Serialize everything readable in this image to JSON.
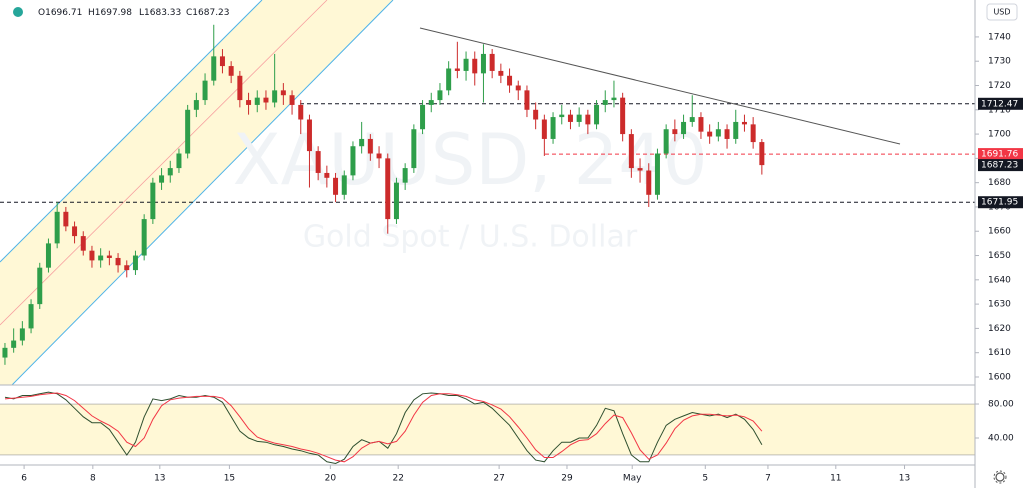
{
  "header": {
    "ohlc_keys": [
      "O",
      "H",
      "L",
      "C"
    ],
    "currency": "USD",
    "watermark_symbol": "XAUUSD, 240",
    "watermark_desc": "Gold Spot / U.S. Dollar"
  },
  "chart_data": [
    {
      "type": "candlestick",
      "up_color": "#2e9e4a",
      "down_color": "#cc2b2b",
      "open": [
        1608,
        1612,
        1615,
        1620,
        1630,
        1645,
        1655,
        1668,
        1662,
        1658,
        1652,
        1648,
        1650,
        1649,
        1646,
        1644,
        1650,
        1665,
        1680,
        1683,
        1686,
        1692,
        1710,
        1714,
        1722,
        1732,
        1728,
        1724,
        1714,
        1712,
        1715,
        1713,
        1718,
        1716,
        1712,
        1706,
        1693,
        1684,
        1682,
        1675,
        1683,
        1695,
        1698,
        1692,
        1690,
        1665,
        1680,
        1686,
        1702,
        1712,
        1714,
        1718,
        1727,
        1726,
        1731,
        1725,
        1733,
        1726,
        1724,
        1720,
        1718,
        1710,
        1706,
        1698,
        1707,
        1708,
        1705,
        1708,
        1704,
        1712,
        1714,
        1715,
        1700,
        1686,
        1685,
        1675,
        1692,
        1702,
        1700,
        1705,
        1707,
        1701,
        1699,
        1702,
        1698,
        1705,
        1704,
        1696.71
      ],
      "high": [
        1614,
        1620,
        1623,
        1632,
        1647,
        1657,
        1672,
        1670,
        1664,
        1660,
        1654,
        1653,
        1652,
        1651,
        1648,
        1652,
        1667,
        1682,
        1686,
        1689,
        1694,
        1712,
        1717,
        1725,
        1745,
        1735,
        1730,
        1726,
        1717,
        1718,
        1718,
        1733,
        1721,
        1718,
        1714,
        1708,
        1695,
        1687,
        1684,
        1685,
        1697,
        1705,
        1700,
        1695,
        1692,
        1682,
        1688,
        1704,
        1714,
        1717,
        1721,
        1730,
        1738,
        1734,
        1734,
        1737,
        1735,
        1729,
        1727,
        1722,
        1720,
        1713,
        1708,
        1709,
        1712,
        1710,
        1711,
        1710,
        1714,
        1718,
        1722,
        1717,
        1702,
        1690,
        1688,
        1694,
        1704,
        1706,
        1708,
        1716,
        1709,
        1704,
        1705,
        1704,
        1710,
        1708,
        1707,
        1697.98
      ],
      "low": [
        1605,
        1610,
        1613,
        1618,
        1628,
        1643,
        1653,
        1660,
        1655,
        1650,
        1645,
        1645,
        1646,
        1643,
        1641,
        1642,
        1648,
        1663,
        1677,
        1680,
        1684,
        1690,
        1707,
        1712,
        1720,
        1725,
        1721,
        1711,
        1708,
        1709,
        1710,
        1711,
        1712,
        1708,
        1700,
        1678,
        1681,
        1678,
        1672,
        1673,
        1681,
        1692,
        1689,
        1686,
        1659,
        1663,
        1677,
        1684,
        1700,
        1709,
        1712,
        1716,
        1723,
        1722,
        1720,
        1713,
        1723,
        1721,
        1717,
        1714,
        1707,
        1702,
        1691,
        1696,
        1704,
        1702,
        1703,
        1700,
        1702,
        1709,
        1711,
        1697,
        1682,
        1680,
        1670,
        1673,
        1690,
        1697,
        1698,
        1703,
        1698,
        1696,
        1697,
        1694,
        1696,
        1701,
        1694,
        1683.33
      ],
      "close": [
        1612,
        1615,
        1620,
        1630,
        1645,
        1655,
        1668,
        1662,
        1658,
        1652,
        1648,
        1650,
        1649,
        1646,
        1644,
        1650,
        1665,
        1680,
        1683,
        1686,
        1692,
        1710,
        1714,
        1722,
        1732,
        1728,
        1724,
        1714,
        1712,
        1715,
        1713,
        1718,
        1716,
        1712,
        1706,
        1693,
        1684,
        1682,
        1675,
        1683,
        1695,
        1698,
        1692,
        1690,
        1665,
        1680,
        1686,
        1702,
        1712,
        1714,
        1718,
        1727,
        1726,
        1731,
        1725,
        1733,
        1726,
        1724,
        1720,
        1718,
        1710,
        1706,
        1698,
        1707,
        1708,
        1705,
        1708,
        1704,
        1712,
        1714,
        1715,
        1700,
        1686,
        1685,
        1675,
        1692,
        1702,
        1700,
        1705,
        1707,
        1701,
        1699,
        1702,
        1698,
        1705,
        1704,
        1696.71,
        1687.23
      ],
      "xlim": [
        -0.57,
        111.5
      ],
      "ylim": [
        1596.7,
        1755.2
      ],
      "yticks": [
        1600,
        1610,
        1620,
        1630,
        1640,
        1650,
        1660,
        1670,
        1680,
        1690,
        1700,
        1710,
        1720,
        1730,
        1740
      ],
      "xticks": [
        {
          "value": 2.2,
          "label": "6"
        },
        {
          "value": 10.1,
          "label": "8"
        },
        {
          "value": 17.8,
          "label": "13"
        },
        {
          "value": 25.8,
          "label": "15"
        },
        {
          "value": 37.4,
          "label": "20"
        },
        {
          "value": 45.2,
          "label": "22"
        },
        {
          "value": 56.8,
          "label": "27"
        },
        {
          "value": 64.6,
          "label": "29"
        },
        {
          "value": 72.1,
          "label": "May"
        },
        {
          "value": 80.5,
          "label": "5"
        },
        {
          "value": 87.7,
          "label": "7"
        },
        {
          "value": 95.5,
          "label": "11"
        },
        {
          "value": 103.4,
          "label": "13"
        }
      ],
      "levels": [
        {
          "value": 1712.47,
          "color": "#131722"
        },
        {
          "value": 1691.76,
          "color": "#f23645"
        },
        {
          "value": 1671.95,
          "color": "#131722"
        }
      ],
      "grid": false
    },
    {
      "type": "line",
      "ylim": [
        8.2,
        102.4
      ],
      "yticks": [
        {
          "value": 80,
          "label": "80.00"
        },
        {
          "value": 40,
          "label": "40.00"
        }
      ],
      "band": [
        20,
        80
      ],
      "series": [
        {
          "color": "#2f4f2f",
          "values": [
            88,
            86,
            90,
            90,
            92,
            94,
            92,
            85,
            75,
            65,
            58,
            58,
            50,
            35,
            20,
            35,
            65,
            86,
            84,
            86,
            90,
            88,
            88,
            90,
            88,
            82,
            65,
            48,
            40,
            36,
            35,
            32,
            30,
            27,
            25,
            22,
            20,
            12,
            10,
            15,
            30,
            38,
            34,
            36,
            28,
            45,
            70,
            85,
            92,
            93,
            92,
            90,
            90,
            86,
            80,
            82,
            75,
            65,
            55,
            40,
            25,
            14,
            12,
            25,
            35,
            35,
            40,
            40,
            55,
            75,
            72,
            45,
            20,
            12,
            12,
            35,
            55,
            62,
            66,
            70,
            68,
            66,
            68,
            64,
            68,
            62,
            50,
            32
          ]
        },
        {
          "color": "#f23645",
          "values": [
            86,
            87,
            88,
            89,
            91,
            92,
            93,
            90,
            84,
            75,
            66,
            60,
            55,
            48,
            35,
            30,
            40,
            62,
            78,
            85,
            87,
            88,
            89,
            89,
            89,
            87,
            78,
            65,
            51,
            41,
            37,
            34,
            32,
            30,
            27,
            25,
            22,
            18,
            14,
            12,
            18,
            28,
            34,
            36,
            33,
            36,
            48,
            67,
            82,
            90,
            92,
            92,
            91,
            89,
            85,
            83,
            79,
            74,
            65,
            53,
            40,
            26,
            17,
            17,
            24,
            32,
            37,
            38,
            45,
            57,
            67,
            64,
            46,
            26,
            15,
            20,
            34,
            51,
            61,
            66,
            68,
            68,
            67,
            66,
            67,
            65,
            60,
            48
          ]
        }
      ]
    }
  ]
}
